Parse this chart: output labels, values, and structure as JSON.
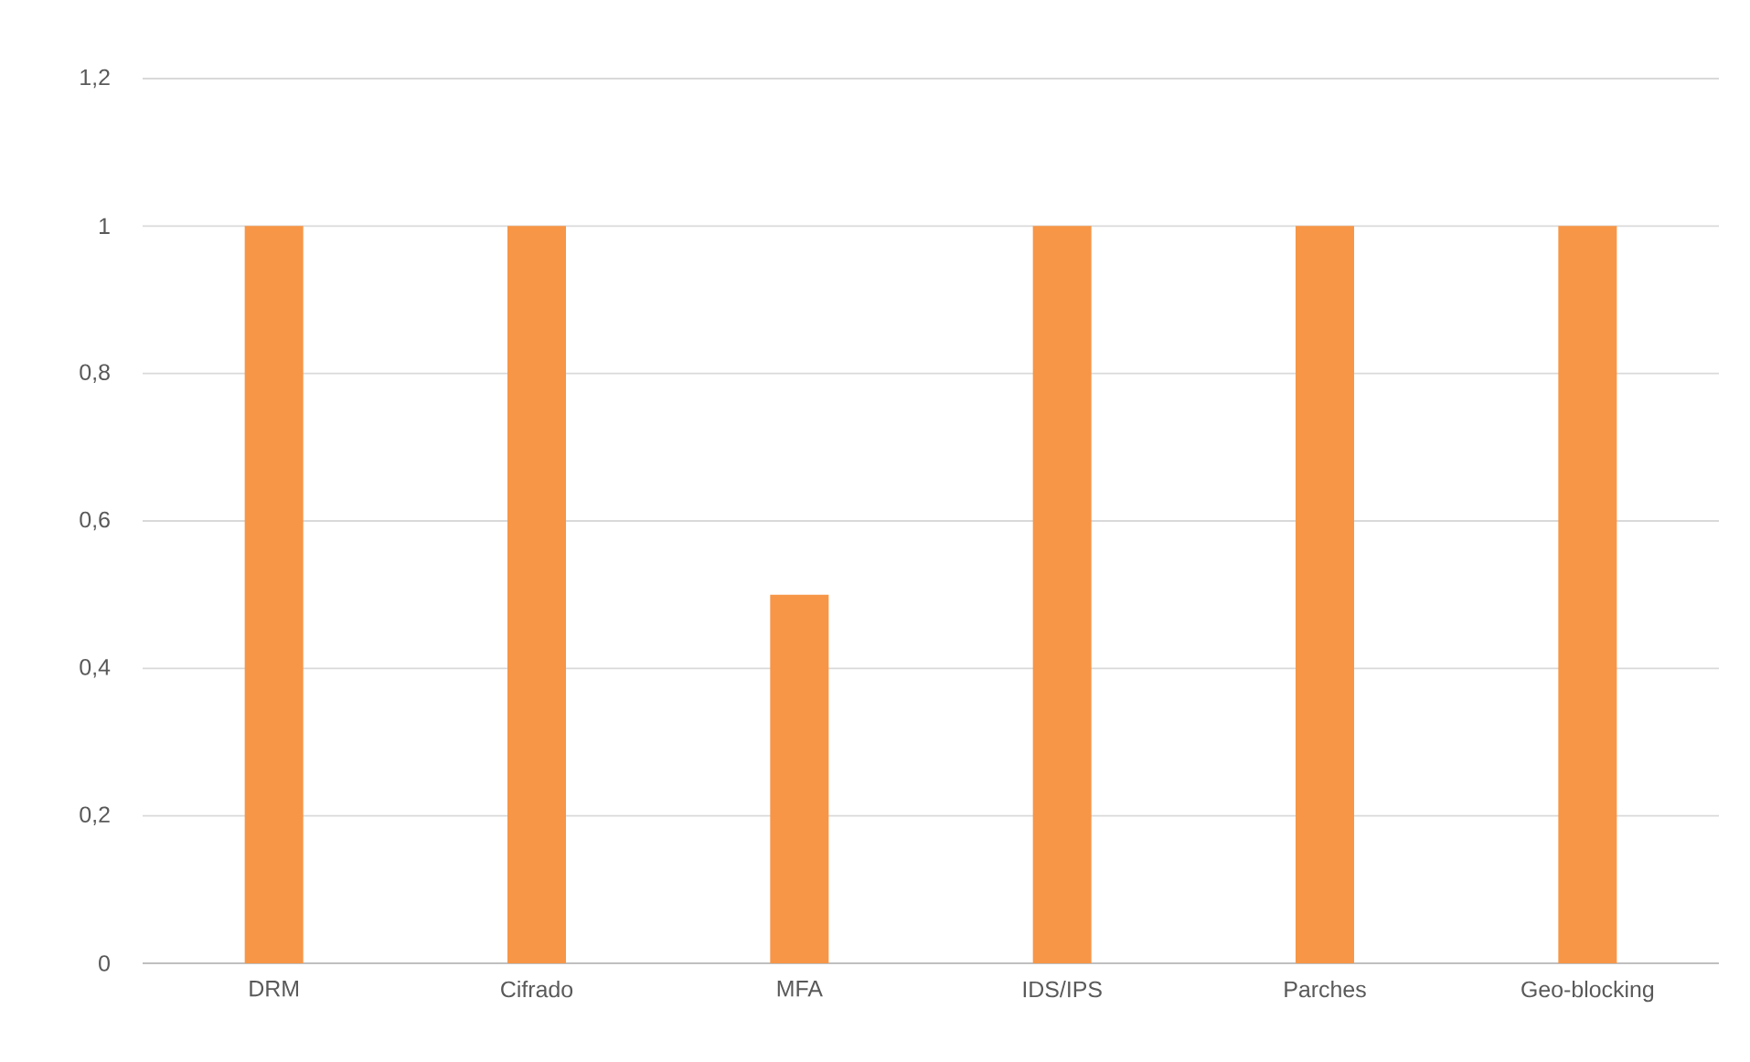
{
  "chart_data": {
    "type": "bar",
    "categories": [
      "DRM",
      "Cifrado",
      "MFA",
      "IDS/IPS",
      "Parches",
      "Geo-blocking"
    ],
    "values": [
      1,
      1,
      0.5,
      1,
      1,
      1
    ],
    "color": "#f79646",
    "ylim": [
      0,
      1.2
    ],
    "yticks": [
      0,
      {
        "value": 0.2,
        "label": "0,2"
      },
      {
        "value": 0.4,
        "label": "0,4"
      },
      {
        "value": 0.6,
        "label": "0,6"
      },
      {
        "value": 0.8,
        "label": "0,8"
      },
      1,
      {
        "value": 1.2,
        "label": "1,2"
      }
    ],
    "grid": "y"
  }
}
